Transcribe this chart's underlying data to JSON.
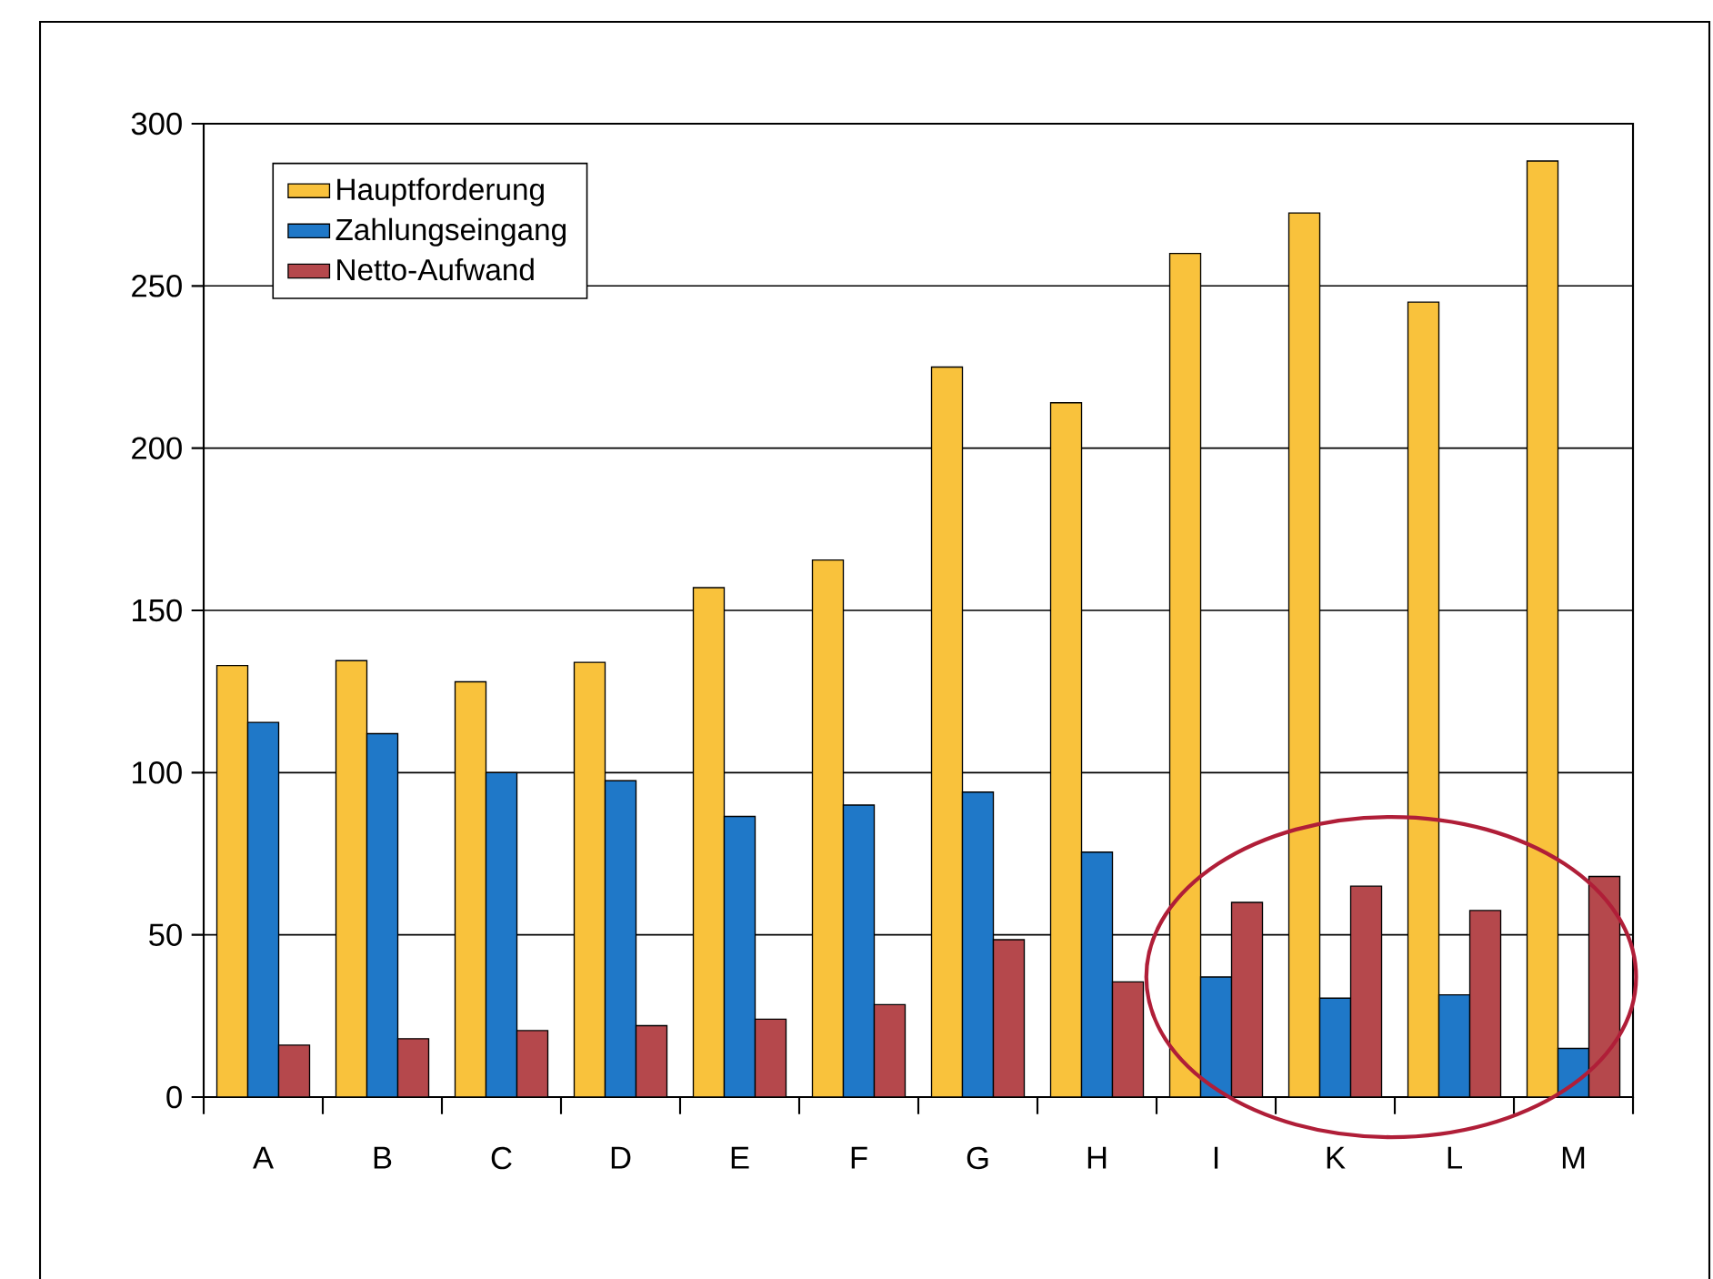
{
  "chart_data": {
    "type": "bar",
    "categories": [
      "A",
      "B",
      "C",
      "D",
      "E",
      "F",
      "G",
      "H",
      "I",
      "K",
      "L",
      "M"
    ],
    "series": [
      {
        "name": "Hauptforderung",
        "color": "#f9c23c",
        "values": [
          133,
          134.5,
          128,
          134,
          157,
          165.5,
          225,
          214,
          260,
          272.5,
          245,
          288.5
        ]
      },
      {
        "name": "Zahlungseingang",
        "color": "#1f78c8",
        "values": [
          115.5,
          112,
          100,
          97.5,
          86.5,
          90,
          94,
          75.5,
          37,
          30.5,
          31.5,
          15
        ]
      },
      {
        "name": "Netto-Aufwand",
        "color": "#b5484c",
        "values": [
          16,
          18,
          20.5,
          22,
          24,
          28.5,
          48.5,
          35.5,
          60,
          65,
          57.5,
          68
        ]
      }
    ],
    "ylim": [
      0,
      300
    ],
    "yticks": [
      0,
      50,
      100,
      150,
      200,
      250,
      300
    ],
    "grid": "y",
    "legend": "top left"
  }
}
